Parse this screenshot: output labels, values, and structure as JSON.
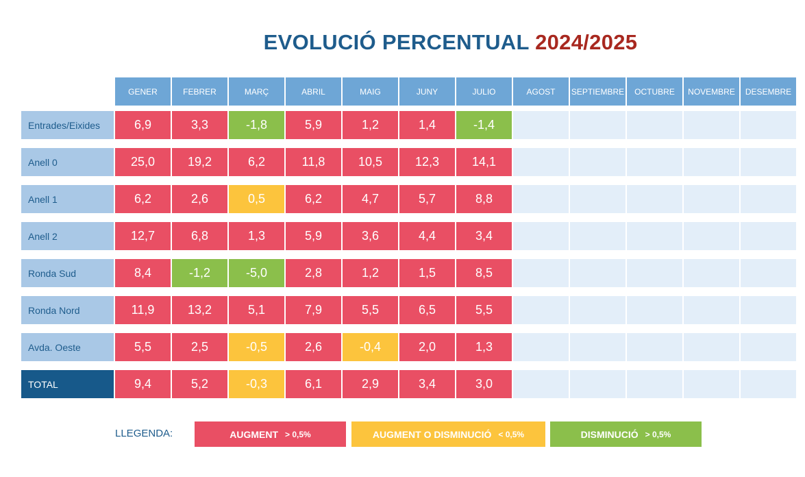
{
  "title": {
    "main": "EVOLUCIÓ PERCENTUAL",
    "year": "2024/2025"
  },
  "legend": {
    "label": "LLEGENDA:",
    "items": [
      {
        "text": "AUGMENT",
        "condition": "> 0,5%",
        "color": "#e94f64"
      },
      {
        "text": "AUGMENT O DISMINUCIÓ",
        "condition": "< 0,5%",
        "color": "#fcc43d"
      },
      {
        "text": "DISMINUCIÓ",
        "condition": "> 0,5%",
        "color": "#8bbf4b"
      }
    ]
  },
  "colors": {
    "red": "#e94f64",
    "yellow": "#fcc43d",
    "green": "#8bbf4b",
    "empty": "#e3eef9",
    "header": "#6ea6d6",
    "row_label": "#a9c8e6",
    "total_label": "#17598a"
  },
  "chart_data": {
    "type": "table",
    "title": "EVOLUCIÓ PERCENTUAL 2024/2025",
    "columns": [
      "GENER",
      "FEBRER",
      "MARÇ",
      "ABRIL",
      "MAIG",
      "JUNY",
      "JULIO",
      "AGOST",
      "SEPTIEMBRE",
      "OCTUBRE",
      "NOVEMBRE",
      "DESEMBRE"
    ],
    "rows": [
      {
        "label": "Entrades/Eixides",
        "values": [
          "6,9",
          "3,3",
          "-1,8",
          "5,9",
          "1,2",
          "1,4",
          "-1,4"
        ],
        "colors": [
          "red",
          "red",
          "green",
          "red",
          "red",
          "red",
          "green"
        ]
      },
      {
        "label": "Anell 0",
        "values": [
          "25,0",
          "19,2",
          "6,2",
          "11,8",
          "10,5",
          "12,3",
          "14,1"
        ],
        "colors": [
          "red",
          "red",
          "red",
          "red",
          "red",
          "red",
          "red"
        ]
      },
      {
        "label": "Anell 1",
        "values": [
          "6,2",
          "2,6",
          "0,5",
          "6,2",
          "4,7",
          "5,7",
          "8,8"
        ],
        "colors": [
          "red",
          "red",
          "yellow",
          "red",
          "red",
          "red",
          "red"
        ]
      },
      {
        "label": "Anell 2",
        "values": [
          "12,7",
          "6,8",
          "1,3",
          "5,9",
          "3,6",
          "4,4",
          "3,4"
        ],
        "colors": [
          "red",
          "red",
          "red",
          "red",
          "red",
          "red",
          "red"
        ]
      },
      {
        "label": "Ronda Sud",
        "values": [
          "8,4",
          "-1,2",
          "-5,0",
          "2,8",
          "1,2",
          "1,5",
          "8,5"
        ],
        "colors": [
          "red",
          "green",
          "green",
          "red",
          "red",
          "red",
          "red"
        ]
      },
      {
        "label": "Ronda Nord",
        "values": [
          "11,9",
          "13,2",
          "5,1",
          "7,9",
          "5,5",
          "6,5",
          "5,5"
        ],
        "colors": [
          "red",
          "red",
          "red",
          "red",
          "red",
          "red",
          "red"
        ]
      },
      {
        "label": "Avda. Oeste",
        "values": [
          "5,5",
          "2,5",
          "-0,5",
          "2,6",
          "-0,4",
          "2,0",
          "1,3"
        ],
        "colors": [
          "red",
          "red",
          "yellow",
          "red",
          "yellow",
          "red",
          "red"
        ]
      },
      {
        "label": "TOTAL",
        "values": [
          "9,4",
          "5,2",
          "-0,3",
          "6,1",
          "2,9",
          "3,4",
          "3,0"
        ],
        "colors": [
          "red",
          "red",
          "yellow",
          "red",
          "red",
          "red",
          "red"
        ],
        "total": true
      }
    ]
  }
}
